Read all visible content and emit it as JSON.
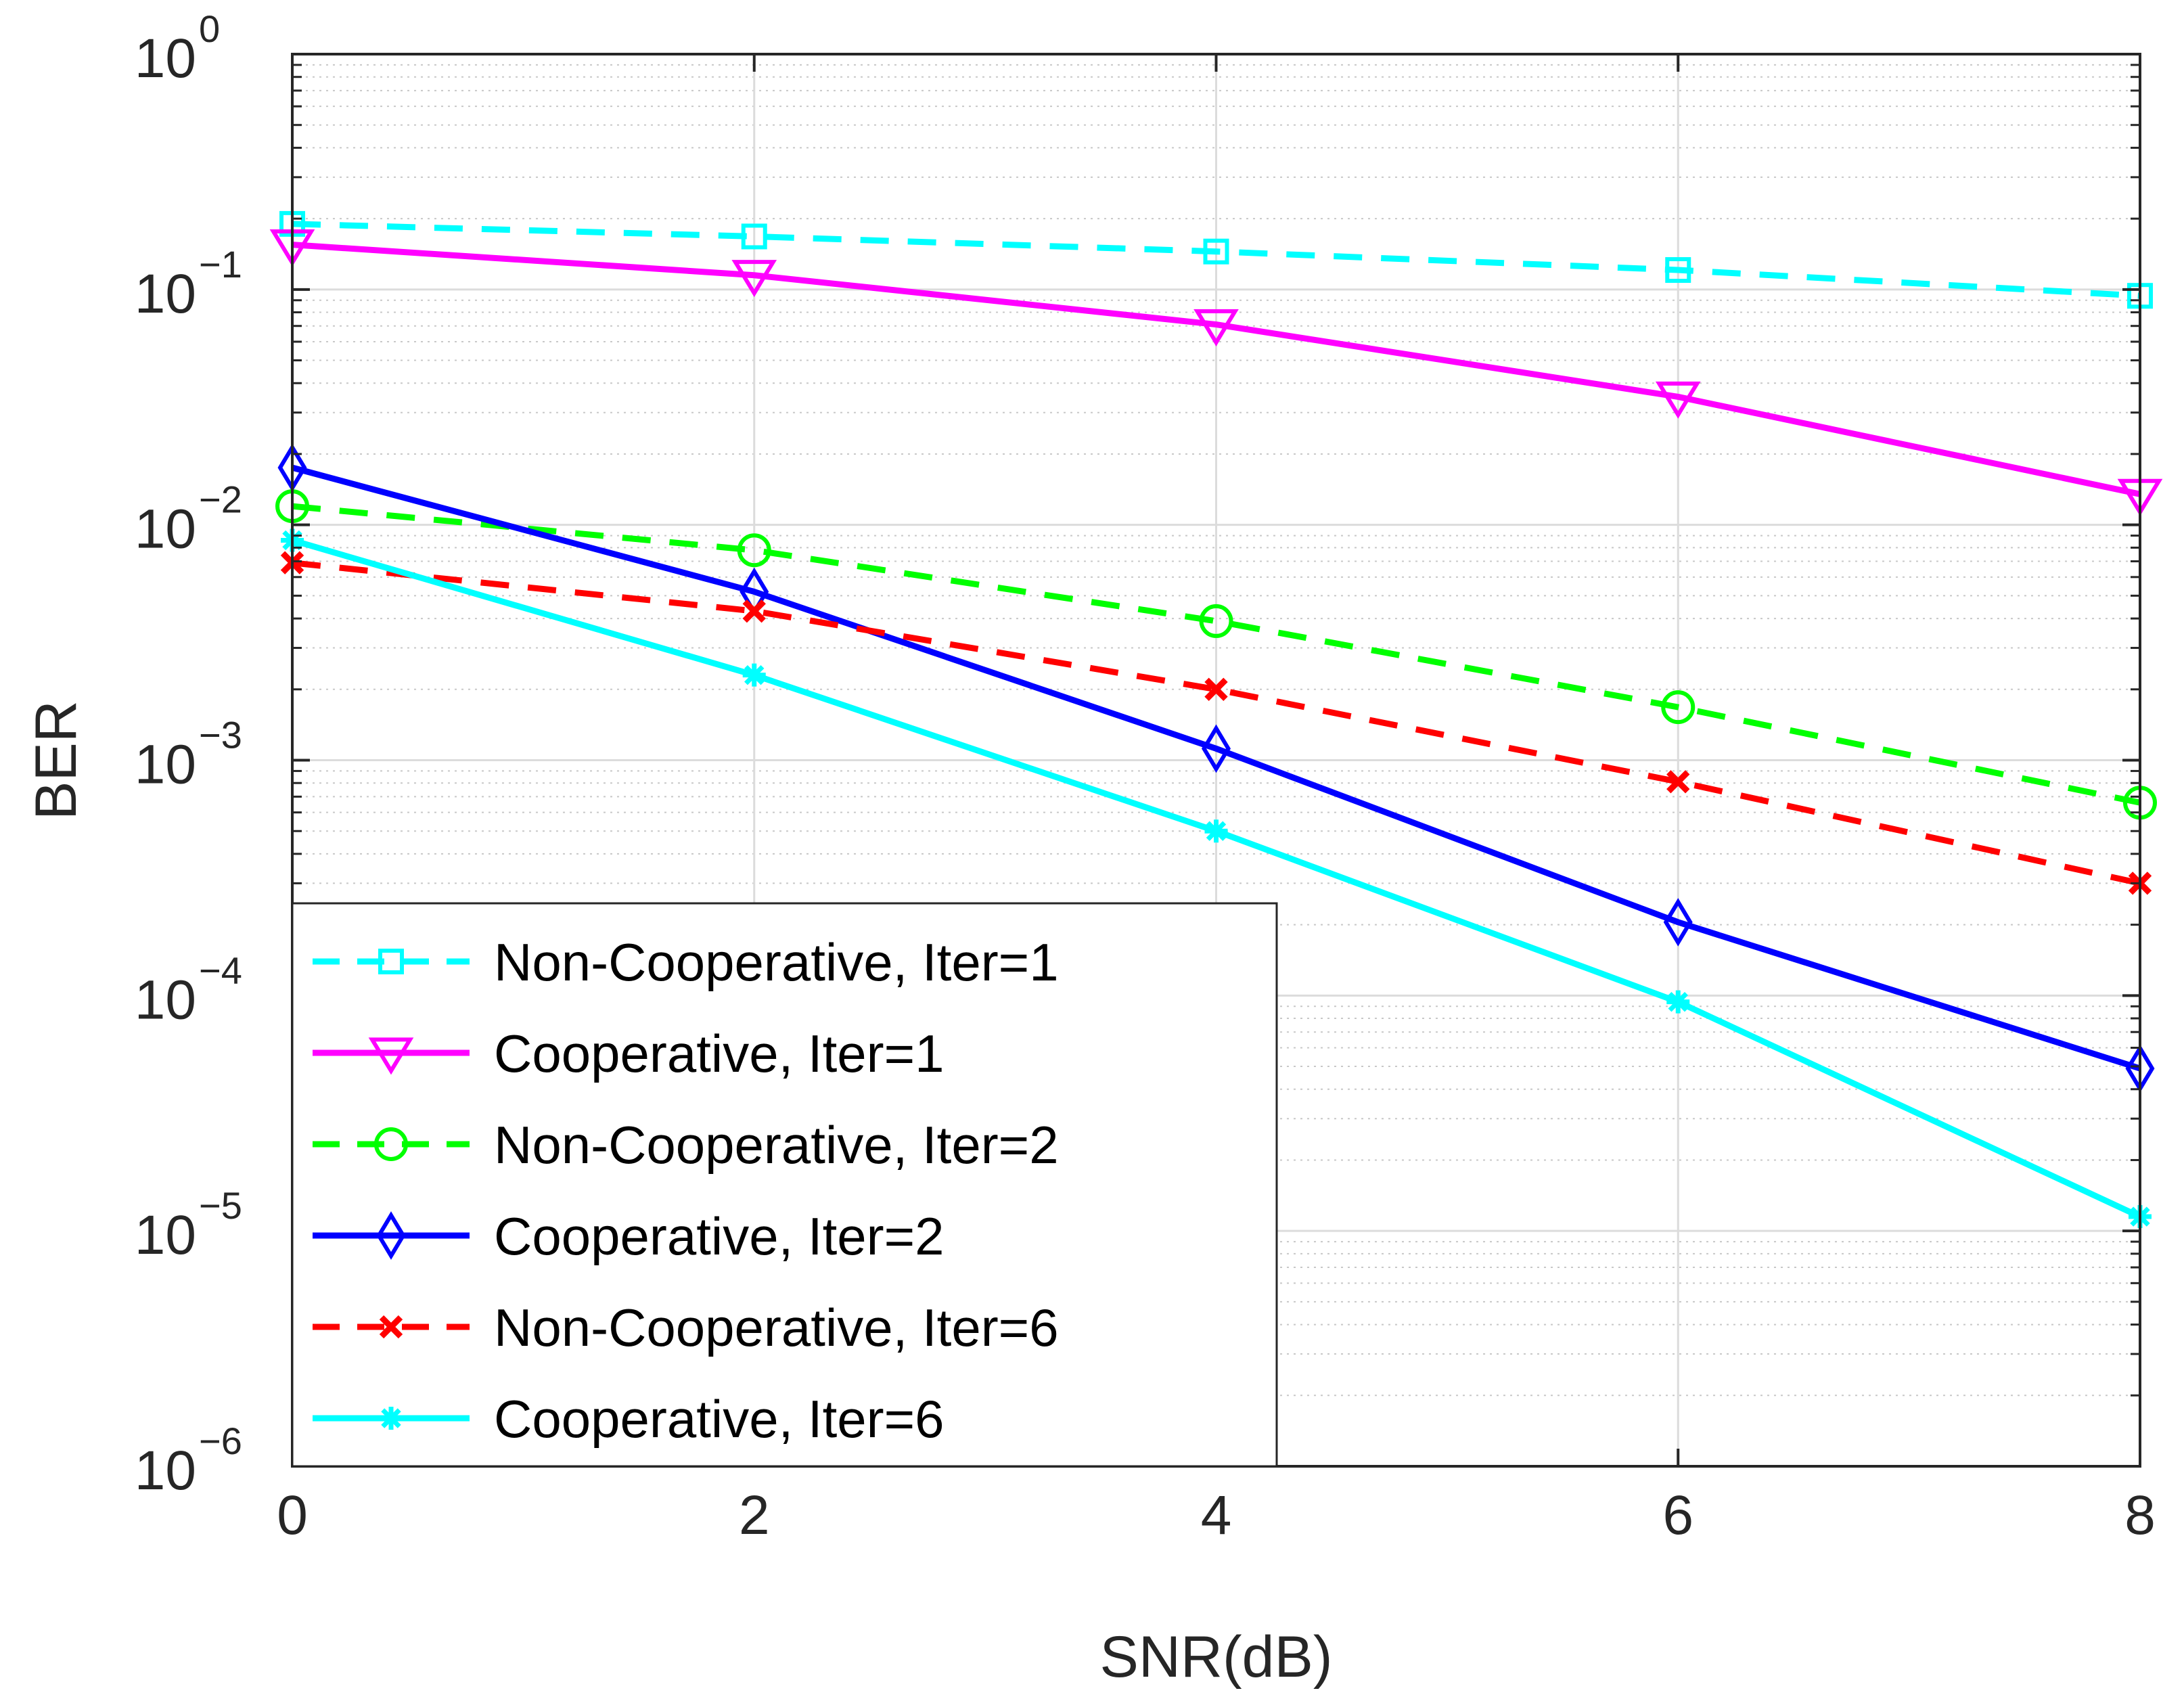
{
  "chart_data": {
    "type": "line",
    "title": "",
    "xlabel": "SNR(dB)",
    "ylabel": "BER",
    "xlim": [
      0,
      8
    ],
    "ylim": [
      1e-06,
      1
    ],
    "yscale": "log",
    "grid": true,
    "legend_position": "bottom-left",
    "x": [
      0,
      2,
      4,
      6,
      8
    ],
    "x_ticks": [
      0,
      2,
      4,
      6,
      8
    ],
    "x_tick_labels": [
      "0",
      "2",
      "4",
      "6",
      "8"
    ],
    "y_ticks": [
      {
        "value": 1,
        "base": "10",
        "exp": "0"
      },
      {
        "value": 0.1,
        "base": "10",
        "exp": "−1"
      },
      {
        "value": 0.01,
        "base": "10",
        "exp": "−2"
      },
      {
        "value": 0.001,
        "base": "10",
        "exp": "−3"
      },
      {
        "value": 0.0001,
        "base": "10",
        "exp": "−4"
      },
      {
        "value": 1e-05,
        "base": "10",
        "exp": "−5"
      },
      {
        "value": 1e-06,
        "base": "10",
        "exp": "−6"
      }
    ],
    "series": [
      {
        "name": "Non-Cooperative, Iter=1",
        "color": "#00ffff",
        "dash": "dashed",
        "marker": "square",
        "values": [
          0.19,
          0.168,
          0.145,
          0.121,
          0.094
        ]
      },
      {
        "name": "Cooperative, Iter=1",
        "color": "#ff00ff",
        "dash": "solid",
        "marker": "triangle-down",
        "values": [
          0.155,
          0.115,
          0.071,
          0.035,
          0.0135
        ]
      },
      {
        "name": "Non-Cooperative, Iter=2",
        "color": "#00ff00",
        "dash": "dashed",
        "marker": "circle",
        "values": [
          0.012,
          0.0078,
          0.0039,
          0.00168,
          0.00066
        ]
      },
      {
        "name": "Cooperative, Iter=2",
        "color": "#0000ff",
        "dash": "solid",
        "marker": "diamond",
        "values": [
          0.0175,
          0.0052,
          0.00112,
          0.000205,
          4.9e-05
        ]
      },
      {
        "name": "Non-Cooperative, Iter=6",
        "color": "#ff0000",
        "dash": "dashed",
        "marker": "x",
        "values": [
          0.0069,
          0.0043,
          0.002,
          0.00081,
          0.0003
        ]
      },
      {
        "name": "Cooperative, Iter=6",
        "color": "#00ffff",
        "dash": "solid",
        "marker": "asterisk",
        "values": [
          0.0086,
          0.0023,
          0.0005,
          9.4e-05,
          1.15e-05
        ]
      }
    ]
  }
}
